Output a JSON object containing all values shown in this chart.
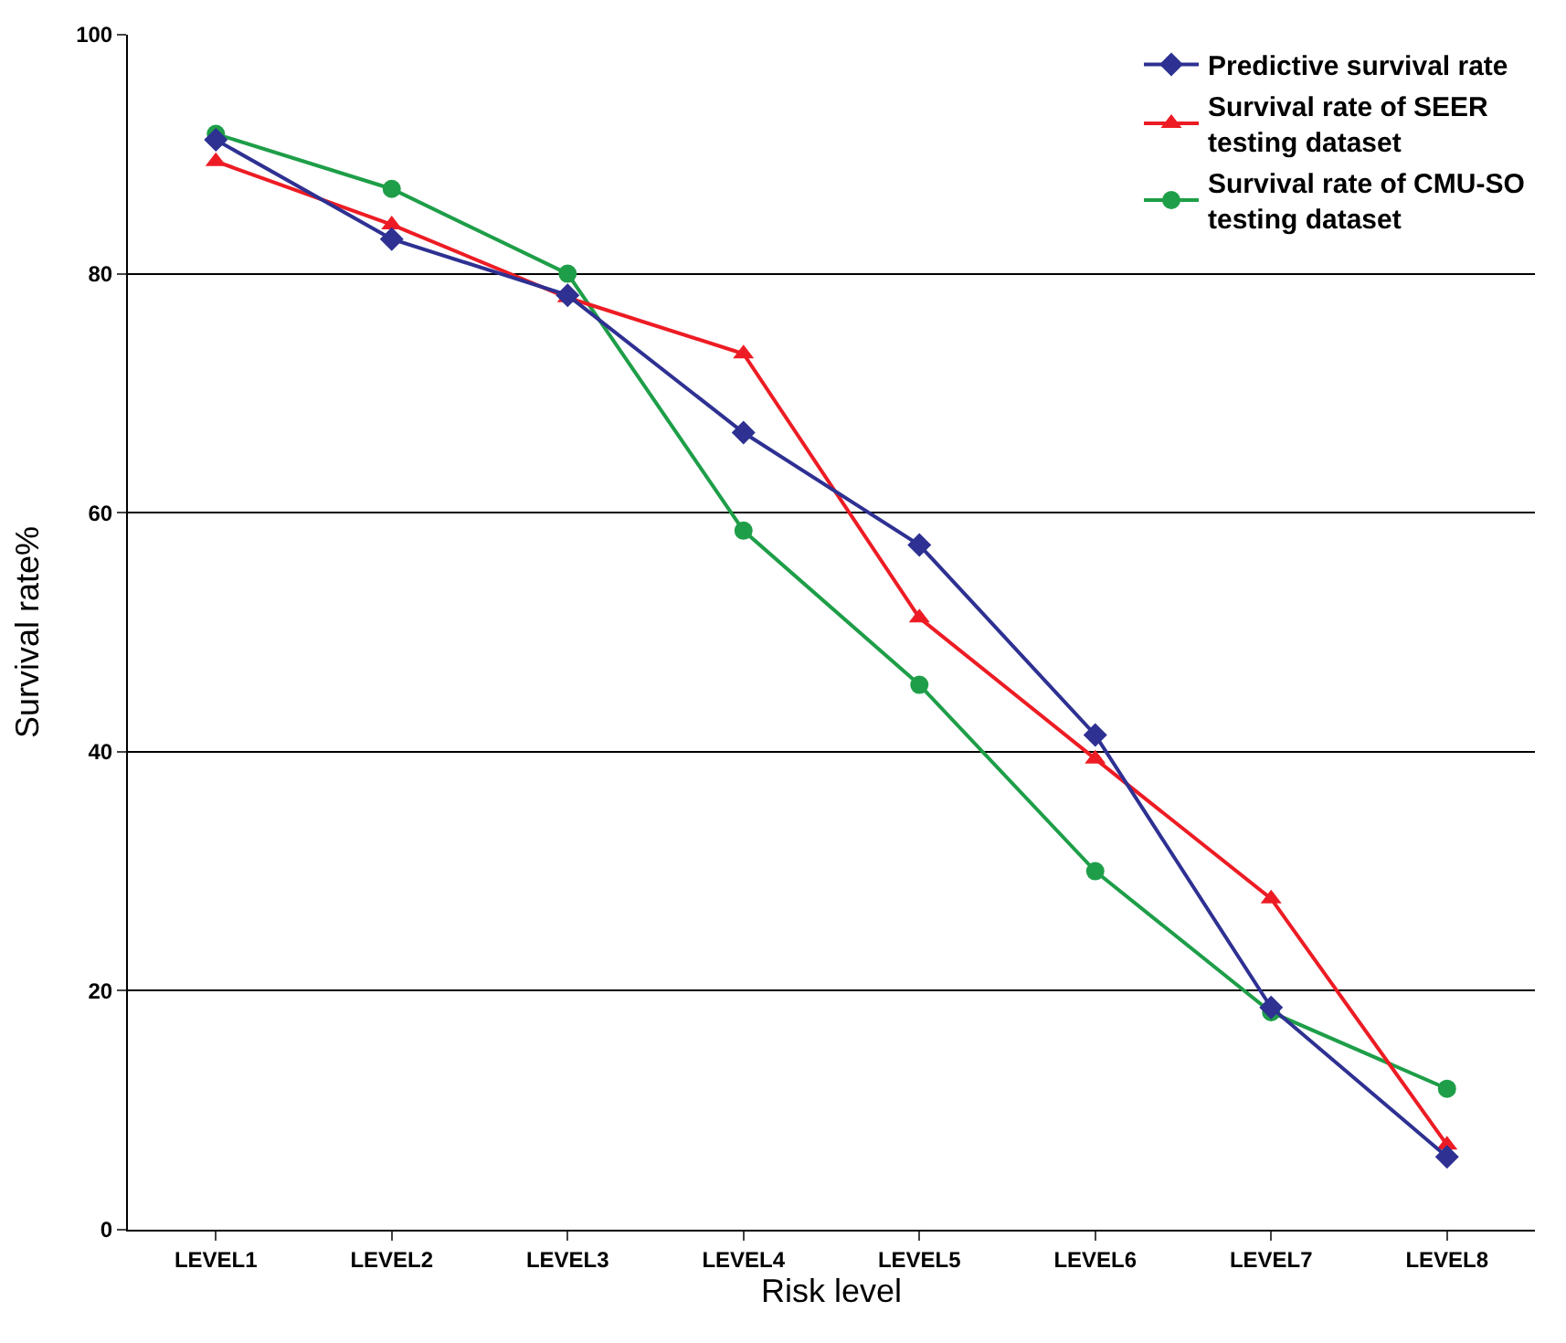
{
  "chart_data": {
    "type": "line",
    "xlabel": "Risk level",
    "ylabel": "Survival rate%",
    "categories": [
      "LEVEL1",
      "LEVEL2",
      "LEVEL3",
      "LEVEL4",
      "LEVEL5",
      "LEVEL6",
      "LEVEL7",
      "LEVEL8"
    ],
    "series": [
      {
        "name": "Predictive survival rate",
        "color": "#2e3192",
        "marker": "diamond",
        "values": [
          91.2,
          82.9,
          78.2,
          66.7,
          57.3,
          41.4,
          18.6,
          6.1
        ]
      },
      {
        "name": "Survival rate of SEER\ntesting dataset",
        "color": "#ed1c24",
        "marker": "triangle",
        "values": [
          89.4,
          84.1,
          78.0,
          73.3,
          51.2,
          39.4,
          27.7,
          7.1
        ]
      },
      {
        "name": "Survival rate of CMU-SO\ntesting dataset",
        "color": "#1e9e48",
        "marker": "circle",
        "values": [
          91.7,
          87.1,
          80.0,
          58.5,
          45.6,
          30.0,
          18.2,
          11.8
        ]
      }
    ],
    "ylim": [
      0,
      100
    ],
    "yticks": [
      0,
      20,
      40,
      60,
      80,
      100
    ],
    "grid": "y",
    "legend": "top right",
    "line_style": "solid"
  }
}
